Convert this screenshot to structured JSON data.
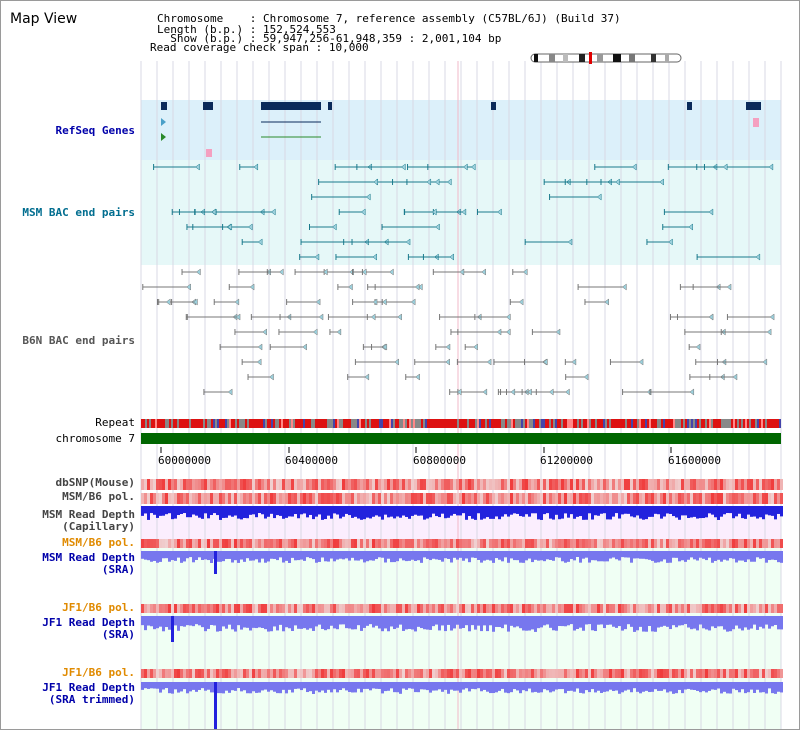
{
  "window": {
    "title": "Map View"
  },
  "header": {
    "lines": [
      {
        "key": "Chromosome    ",
        "value": "Chromosome 7, reference assembly (C57BL/6J) (Build 37)"
      },
      {
        "key": "Length (b.p.) ",
        "value": "152,524,553"
      },
      {
        "key": "  Show (b.p.) ",
        "value": "59,947,256-61,948,359 : 2,001,104 bp"
      },
      {
        "key": "Read coverage check span",
        "value": "10,000"
      }
    ]
  },
  "tracks": {
    "refseq": {
      "label": "RefSeq Genes",
      "color": "#0000aa"
    },
    "msm_bac": {
      "label": "MSM BAC end pairs",
      "color": "#006d8f"
    },
    "b6n_bac": {
      "label": "B6N BAC end pairs",
      "color": "#555555"
    },
    "repeat": {
      "label": "Repeat",
      "color": "#000000"
    },
    "chromosome": {
      "label": "chromosome 7",
      "color": "#000000"
    },
    "dbsnp": {
      "label": "dbSNP(Mouse)",
      "color": "#444444"
    },
    "msm_b6_pol": {
      "label": "MSM/B6 pol.",
      "color": "#444444"
    },
    "msm_depth_cap": {
      "label": "MSM Read Depth",
      "sub": "(Capillary)",
      "color": "#444444"
    },
    "msm_b6_pol_2": {
      "label": "MSM/B6 pol.",
      "color": "#e08a00"
    },
    "msm_depth_sra": {
      "label": "MSM Read Depth",
      "sub": "(SRA)",
      "color": "#0000aa"
    },
    "jf1_b6_pol": {
      "label": "JF1/B6 pol.",
      "color": "#e08a00"
    },
    "jf1_depth_sra": {
      "label": "JF1 Read Depth",
      "sub": "(SRA)",
      "color": "#0000aa"
    },
    "jf1_b6_pol_2": {
      "label": "JF1/B6 pol.",
      "color": "#e08a00"
    },
    "jf1_depth_trim": {
      "label": "JF1 Read Depth",
      "sub": "(SRA trimmed)",
      "color": "#0000aa"
    }
  },
  "axis": {
    "ticks": [
      "60000000",
      "60400000",
      "60800000",
      "61200000",
      "61600000"
    ]
  },
  "colors": {
    "refseq_bg": "#dcf0fa",
    "msm_bg": "#e6f8f8",
    "depth_bg": "#f0fff4",
    "gene": "#0a2a5a",
    "msm_feature": "#1a7a8c",
    "b6n_feature": "#777777",
    "chromosome_bar": "#006600",
    "polymorphism": "#ee3333",
    "depth_blue": "#2222dd",
    "depth_light": "#7777ee"
  }
}
